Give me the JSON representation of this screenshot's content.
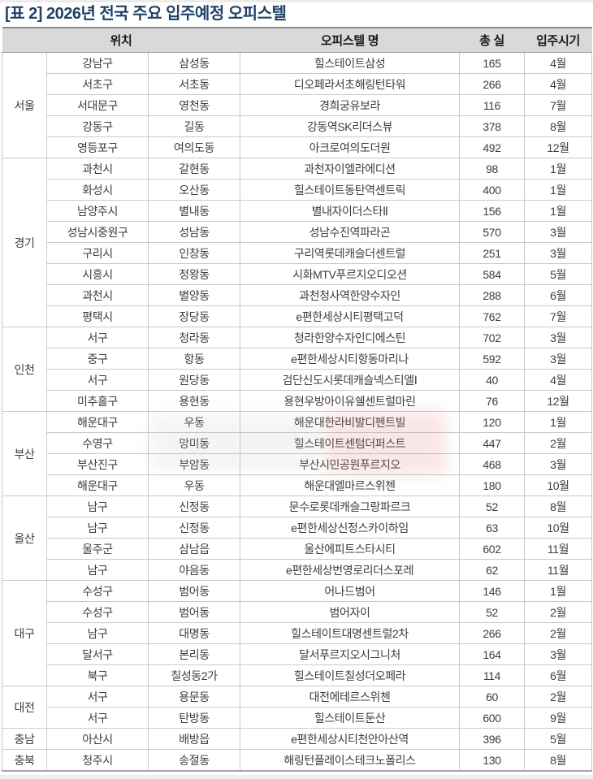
{
  "title": "[표 2] 2026년 전국 주요 입주예정 오피스텔",
  "columns": {
    "location": "위치",
    "name": "오피스텔 명",
    "units": "총 실",
    "movein": "입주시기"
  },
  "colors": {
    "title_text": "#1f4266",
    "header_background": "#d9d9d9",
    "cell_border": "#c9c9c9",
    "body_text": "#3d3d3d"
  },
  "groups": [
    {
      "region": "서울",
      "rows": [
        {
          "district": "강남구",
          "dong": "삼성동",
          "name": "힐스테이트삼성",
          "units": "165",
          "month": "4월"
        },
        {
          "district": "서초구",
          "dong": "서초동",
          "name": "디오페라서초해링턴타워",
          "units": "266",
          "month": "4월"
        },
        {
          "district": "서대문구",
          "dong": "영천동",
          "name": "경희궁유보라",
          "units": "116",
          "month": "7월"
        },
        {
          "district": "강동구",
          "dong": "길동",
          "name": "강동역SK리더스뷰",
          "units": "378",
          "month": "8월"
        },
        {
          "district": "영등포구",
          "dong": "여의도동",
          "name": "아크로여의도더원",
          "units": "492",
          "month": "12월"
        }
      ]
    },
    {
      "region": "경기",
      "rows": [
        {
          "district": "과천시",
          "dong": "갈현동",
          "name": "과천자이엘라에디션",
          "units": "98",
          "month": "1월"
        },
        {
          "district": "화성시",
          "dong": "오산동",
          "name": "힐스테이트동탄역센트릭",
          "units": "400",
          "month": "1월"
        },
        {
          "district": "남양주시",
          "dong": "별내동",
          "name": "별내자이더스타Ⅱ",
          "units": "156",
          "month": "1월"
        },
        {
          "district": "성남시중원구",
          "dong": "성남동",
          "name": "성남수진역파라곤",
          "units": "570",
          "month": "3월"
        },
        {
          "district": "구리시",
          "dong": "인창동",
          "name": "구리역롯데캐슬더센트럴",
          "units": "251",
          "month": "3월"
        },
        {
          "district": "시흥시",
          "dong": "정왕동",
          "name": "시화MTV푸르지오디오션",
          "units": "584",
          "month": "5월"
        },
        {
          "district": "과천시",
          "dong": "별양동",
          "name": "과천청사역한양수자인",
          "units": "288",
          "month": "6월"
        },
        {
          "district": "평택시",
          "dong": "장당동",
          "name": "e편한세상시티평택고덕",
          "units": "762",
          "month": "7월"
        }
      ]
    },
    {
      "region": "인천",
      "rows": [
        {
          "district": "서구",
          "dong": "청라동",
          "name": "청라한양수자인디에스틴",
          "units": "702",
          "month": "3월"
        },
        {
          "district": "중구",
          "dong": "항동",
          "name": "e편한세상시티항동마리나",
          "units": "592",
          "month": "3월"
        },
        {
          "district": "서구",
          "dong": "원당동",
          "name": "검단신도시롯데캐슬넥스티엘Ⅰ",
          "units": "40",
          "month": "4월"
        },
        {
          "district": "미추홀구",
          "dong": "용현동",
          "name": "용현우방아이유쉘센트럴마린",
          "units": "76",
          "month": "12월"
        }
      ]
    },
    {
      "region": "부산",
      "rows": [
        {
          "district": "해운대구",
          "dong": "우동",
          "name": "해운대한라비발디펜트빌",
          "units": "120",
          "month": "1월"
        },
        {
          "district": "수영구",
          "dong": "망미동",
          "name": "힐스테이트센텀더퍼스트",
          "units": "447",
          "month": "2월"
        },
        {
          "district": "부산진구",
          "dong": "부암동",
          "name": "부산시민공원푸르지오",
          "units": "468",
          "month": "3월"
        },
        {
          "district": "해운대구",
          "dong": "우동",
          "name": "해운대엘마르스위첸",
          "units": "180",
          "month": "10월"
        }
      ]
    },
    {
      "region": "울산",
      "rows": [
        {
          "district": "남구",
          "dong": "신정동",
          "name": "문수로롯데캐슬그랑파르크",
          "units": "52",
          "month": "8월"
        },
        {
          "district": "남구",
          "dong": "신정동",
          "name": "e편한세상신정스카이하임",
          "units": "63",
          "month": "10월"
        },
        {
          "district": "울주군",
          "dong": "삼남읍",
          "name": "울산에피트스타시티",
          "units": "602",
          "month": "11월"
        },
        {
          "district": "남구",
          "dong": "야음동",
          "name": "e편한세상번영로리더스포레",
          "units": "62",
          "month": "11월"
        }
      ]
    },
    {
      "region": "대구",
      "rows": [
        {
          "district": "수성구",
          "dong": "범어동",
          "name": "어나드범어",
          "units": "146",
          "month": "1월"
        },
        {
          "district": "수성구",
          "dong": "범어동",
          "name": "범어자이",
          "units": "52",
          "month": "2월"
        },
        {
          "district": "남구",
          "dong": "대명동",
          "name": "힐스테이트대명센트럴2차",
          "units": "266",
          "month": "2월"
        },
        {
          "district": "달서구",
          "dong": "본리동",
          "name": "달서푸르지오시그니처",
          "units": "164",
          "month": "3월"
        },
        {
          "district": "북구",
          "dong": "칠성동2가",
          "name": "힐스테이트칠성더오페라",
          "units": "114",
          "month": "6월"
        }
      ]
    },
    {
      "region": "대전",
      "rows": [
        {
          "district": "서구",
          "dong": "용문동",
          "name": "대전에테르스위첸",
          "units": "60",
          "month": "2월"
        },
        {
          "district": "서구",
          "dong": "탄방동",
          "name": "힐스테이트둔산",
          "units": "600",
          "month": "9월"
        }
      ]
    },
    {
      "region": "충남",
      "rows": [
        {
          "district": "아산시",
          "dong": "배방읍",
          "name": "e편한세상시티천안아산역",
          "units": "396",
          "month": "5월"
        }
      ]
    },
    {
      "region": "충북",
      "rows": [
        {
          "district": "청주시",
          "dong": "송절동",
          "name": "해링턴플레이스테크노폴리스",
          "units": "130",
          "month": "8월"
        }
      ]
    }
  ]
}
